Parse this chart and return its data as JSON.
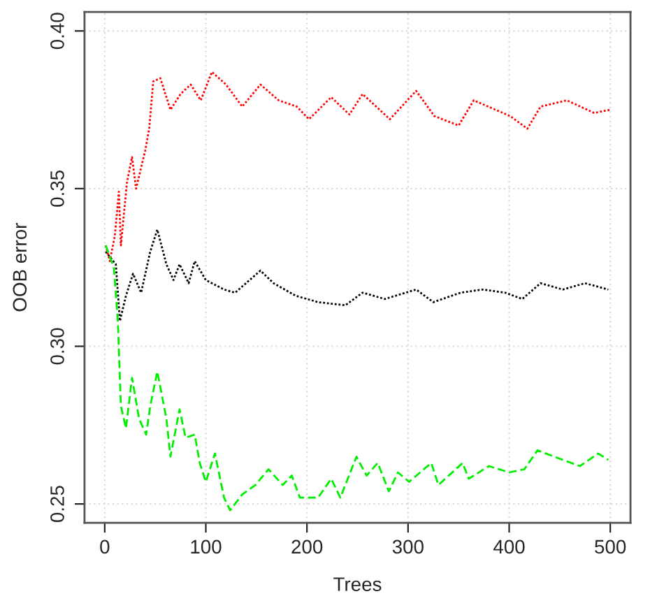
{
  "chart_data": {
    "type": "line",
    "xlabel": "Trees",
    "ylabel": "OOB error",
    "xlim": [
      -20,
      520
    ],
    "ylim": [
      0.244,
      0.406
    ],
    "xticks": [
      0,
      100,
      200,
      300,
      400,
      500
    ],
    "yticks": [
      {
        "value": 0.25,
        "label": "0.25"
      },
      {
        "value": 0.3,
        "label": "0.30"
      },
      {
        "value": 0.35,
        "label": "0.35"
      },
      {
        "value": 0.4,
        "label": "0.40"
      }
    ],
    "grid": true,
    "marker": "none",
    "series": [
      {
        "color": "#000000",
        "line_style": "dotted",
        "x": [
          1,
          11,
          15,
          21,
          28,
          36,
          45,
          52,
          61,
          68,
          74,
          83,
          89,
          100,
          118,
          129,
          154,
          167,
          189,
          211,
          238,
          255,
          277,
          308,
          325,
          352,
          374,
          396,
          413,
          431,
          453,
          475,
          498
        ],
        "values": [
          0.33,
          0.326,
          0.308,
          0.316,
          0.323,
          0.317,
          0.33,
          0.337,
          0.326,
          0.321,
          0.326,
          0.32,
          0.327,
          0.321,
          0.318,
          0.317,
          0.324,
          0.32,
          0.316,
          0.314,
          0.313,
          0.317,
          0.315,
          0.318,
          0.314,
          0.317,
          0.318,
          0.317,
          0.315,
          0.32,
          0.318,
          0.32,
          0.318
        ]
      },
      {
        "color": "#ff0000",
        "line_style": "dotted",
        "x": [
          1,
          5,
          10,
          14,
          16,
          22,
          27,
          31,
          40,
          44,
          48,
          55,
          65,
          75,
          85,
          95,
          106,
          120,
          136,
          154,
          172,
          190,
          202,
          224,
          242,
          255,
          282,
          308,
          326,
          350,
          365,
          401,
          418,
          431,
          457,
          484,
          500
        ],
        "values": [
          0.332,
          0.327,
          0.335,
          0.349,
          0.332,
          0.352,
          0.36,
          0.35,
          0.362,
          0.369,
          0.384,
          0.385,
          0.375,
          0.38,
          0.383,
          0.378,
          0.387,
          0.383,
          0.376,
          0.383,
          0.378,
          0.376,
          0.372,
          0.379,
          0.3735,
          0.38,
          0.372,
          0.381,
          0.373,
          0.37,
          0.378,
          0.373,
          0.369,
          0.376,
          0.378,
          0.374,
          0.375
        ]
      },
      {
        "color": "#00ee00",
        "line_style": "dashed",
        "x": [
          1,
          9,
          13,
          16,
          21,
          27,
          34,
          41,
          45,
          52,
          61,
          65,
          74,
          80,
          89,
          94,
          100,
          109,
          118,
          124,
          136,
          149,
          162,
          176,
          185,
          193,
          211,
          224,
          233,
          249,
          259,
          270,
          281,
          290,
          301,
          323,
          330,
          354,
          360,
          380,
          400,
          415,
          428,
          453,
          470,
          488,
          498
        ],
        "values": [
          0.332,
          0.325,
          0.308,
          0.281,
          0.274,
          0.29,
          0.277,
          0.272,
          0.281,
          0.292,
          0.277,
          0.265,
          0.28,
          0.271,
          0.272,
          0.263,
          0.257,
          0.266,
          0.252,
          0.248,
          0.253,
          0.256,
          0.261,
          0.256,
          0.259,
          0.252,
          0.252,
          0.258,
          0.252,
          0.265,
          0.259,
          0.263,
          0.254,
          0.26,
          0.257,
          0.263,
          0.256,
          0.263,
          0.258,
          0.262,
          0.26,
          0.261,
          0.267,
          0.264,
          0.262,
          0.266,
          0.264
        ]
      }
    ]
  }
}
